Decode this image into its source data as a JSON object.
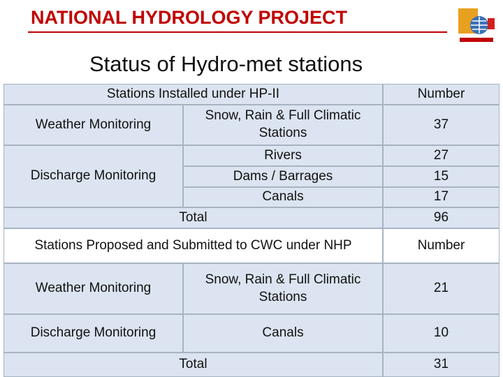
{
  "header": {
    "title": "NATIONAL HYDROLOGY PROJECT",
    "subtitle": "Status of Hydro-met stations"
  },
  "installed": {
    "heading": "Stations Installed under HP-II",
    "number_heading": "Number",
    "groups": [
      {
        "name": "Weather Monitoring",
        "items": [
          {
            "type": "Snow, Rain & Full Climatic Stations",
            "number": 37
          }
        ]
      },
      {
        "name": "Discharge Monitoring",
        "items": [
          {
            "type": "Rivers",
            "number": 27
          },
          {
            "type": "Dams / Barrages",
            "number": 15
          },
          {
            "type": "Canals",
            "number": 17
          }
        ]
      }
    ],
    "total_label": "Total",
    "total": 96
  },
  "proposed": {
    "heading": "Stations Proposed and Submitted to CWC under NHP",
    "number_heading": "Number",
    "groups": [
      {
        "name": "Weather Monitoring",
        "items": [
          {
            "type": "Snow, Rain & Full Climatic Stations",
            "number": 21
          }
        ]
      },
      {
        "name": "Discharge Monitoring",
        "items": [
          {
            "type": "Canals",
            "number": 10
          }
        ]
      }
    ],
    "total_label": "Total",
    "total": 31
  }
}
